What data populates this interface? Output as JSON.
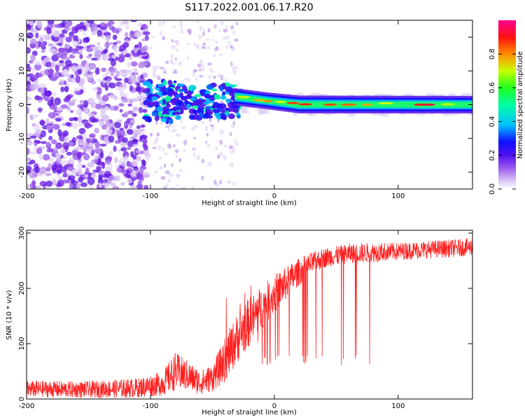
{
  "title": "S117.2022.001.06.17.R20",
  "chart_data": [
    {
      "type": "heatmap",
      "panel": "top",
      "xlabel": "Height of straight line (km)",
      "ylabel": "Frequency (Hz)",
      "xlim": [
        -200,
        160
      ],
      "ylim": [
        -25,
        25
      ],
      "xticks": [
        -200,
        -100,
        0,
        100
      ],
      "yticks": [
        -20,
        -10,
        0,
        10,
        20
      ],
      "colorbar": {
        "label": "Normalized spectral amplitude",
        "range": [
          0,
          1
        ],
        "ticks": [
          0.0,
          0.2,
          0.4,
          0.6,
          0.8
        ],
        "colors": [
          "#ffffff",
          "#c8a8f0",
          "#7a1fe8",
          "#1010ff",
          "#00c8ff",
          "#00ff40",
          "#d8ff00",
          "#ff8000",
          "#ff0000",
          "#ff0090"
        ]
      },
      "description_values": {
        "noise_region_x": [
          -200,
          -105
        ],
        "signal_center_freq_hz": 0,
        "signal_start_x": -105
      }
    },
    {
      "type": "line",
      "panel": "bottom",
      "xlabel": "Height of straight line (km)",
      "ylabel": "SNR (10 * v/v)",
      "xlim": [
        -200,
        160
      ],
      "ylim": [
        0,
        305
      ],
      "xticks": [
        -200,
        -100,
        0,
        100
      ],
      "yticks": [
        0,
        100,
        200,
        300
      ],
      "series": [
        {
          "color": "#ff2020",
          "envelope_x": [
            -200,
            -150,
            -110,
            -90,
            -80,
            -70,
            -60,
            -50,
            -40,
            -30,
            -20,
            -10,
            0,
            10,
            20,
            30,
            40,
            60,
            80,
            100,
            120,
            140,
            160
          ],
          "envelope_mid": [
            18,
            17,
            20,
            28,
            50,
            42,
            30,
            38,
            70,
            110,
            140,
            165,
            190,
            210,
            230,
            245,
            255,
            263,
            265,
            267,
            270,
            272,
            275
          ],
          "envelope_spread": [
            15,
            15,
            18,
            22,
            35,
            28,
            22,
            25,
            40,
            45,
            45,
            40,
            35,
            30,
            25,
            20,
            18,
            18,
            18,
            16,
            16,
            16,
            16
          ]
        }
      ]
    }
  ]
}
